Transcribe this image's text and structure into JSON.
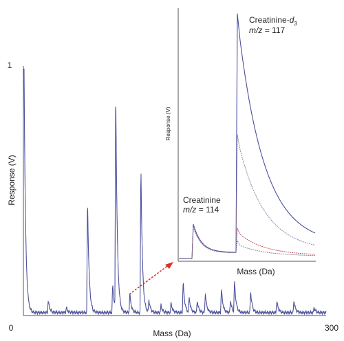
{
  "chart_data": [
    {
      "type": "line",
      "xlabel": "Mass (Da)",
      "ylabel": "Response (V)",
      "xlim": [
        0,
        300
      ],
      "ylim": [
        0,
        1
      ],
      "x_tick_labels": [
        "0",
        "300"
      ],
      "y_tick_labels": [
        "1"
      ],
      "colors": {
        "primary": "#4a4f9e",
        "secondary": "#9a9ab0"
      },
      "series": [
        {
          "peaks": [
            {
              "x": 0,
              "y": 0.98
            },
            {
              "x": 24,
              "y": 0.05
            },
            {
              "x": 42,
              "y": 0.02
            },
            {
              "x": 63,
              "y": 0.48
            },
            {
              "x": 88,
              "y": 0.12
            },
            {
              "x": 91,
              "y": 0.93
            },
            {
              "x": 105,
              "y": 0.08
            },
            {
              "x": 116,
              "y": 0.62
            },
            {
              "x": 124,
              "y": 0.05
            },
            {
              "x": 136,
              "y": 0.03
            },
            {
              "x": 146,
              "y": 0.04
            },
            {
              "x": 158,
              "y": 0.13
            },
            {
              "x": 164,
              "y": 0.06
            },
            {
              "x": 172,
              "y": 0.05
            },
            {
              "x": 180,
              "y": 0.08
            },
            {
              "x": 196,
              "y": 0.1
            },
            {
              "x": 205,
              "y": 0.05
            },
            {
              "x": 209,
              "y": 0.13
            },
            {
              "x": 225,
              "y": 0.09
            },
            {
              "x": 251,
              "y": 0.05
            },
            {
              "x": 268,
              "y": 0.05
            },
            {
              "x": 288,
              "y": 0.02
            }
          ]
        }
      ]
    },
    {
      "type": "line",
      "xlabel": "Mass (Da)",
      "ylabel": "Response (V)",
      "annotations": [
        {
          "name": "Creatinine",
          "prefix": "m/z",
          "value": "= 114"
        },
        {
          "name": "Creatinine-",
          "subscript_italic": "d",
          "subscript": "3",
          "prefix": "m/z",
          "value": "= 117"
        }
      ],
      "colors": {
        "primary": "#4a4f9e",
        "secondary": "#8a7a9e",
        "accent": "#b84848",
        "arrow": "#d9302a"
      },
      "series": [
        {
          "peaks": [
            {
              "x": 114,
              "y": 0.14
            },
            {
              "x": 117,
              "y": 0.97
            }
          ]
        },
        {
          "peaks": [
            {
              "x": 114,
              "y": 0.13
            },
            {
              "x": 117,
              "y": 0.48
            }
          ]
        },
        {
          "peaks": [
            {
              "x": 114,
              "y": 0.13
            },
            {
              "x": 117,
              "y": 0.1
            }
          ]
        },
        {
          "peaks": [
            {
              "x": 114,
              "y": 0.13
            },
            {
              "x": 117,
              "y": 0.05
            }
          ]
        }
      ]
    }
  ]
}
